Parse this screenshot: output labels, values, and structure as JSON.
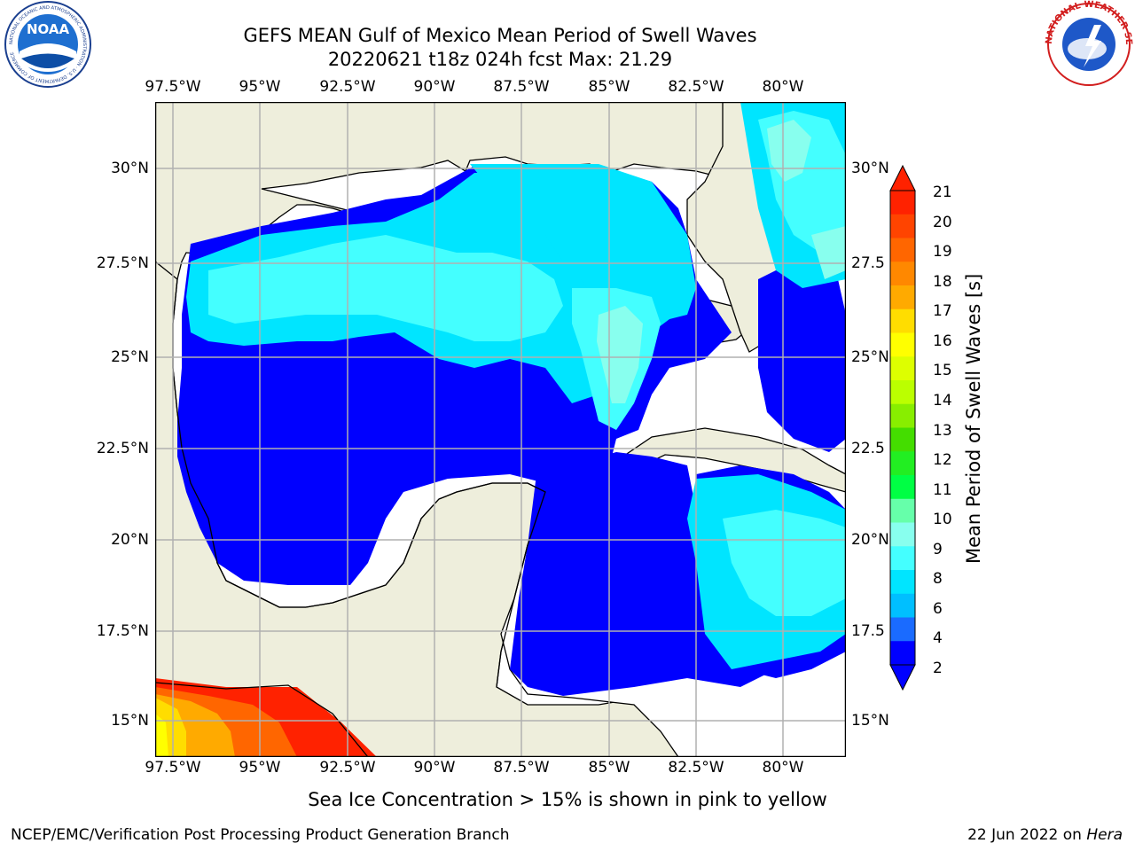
{
  "title_line1": "GEFS MEAN Gulf of Mexico Mean Period of Swell Waves",
  "title_line2": "20220621 t18z 024h fcst   Max: 21.29",
  "lon_ticks": [
    "97.5°W",
    "95°W",
    "92.5°W",
    "90°W",
    "87.5°W",
    "85°W",
    "82.5°W",
    "80°W"
  ],
  "lat_ticks": [
    "30°N",
    "27.5°N",
    "25°N",
    "22.5°N",
    "20°N",
    "17.5°N",
    "15°N"
  ],
  "lat_ticks_right": [
    "30°N",
    "27.5",
    "25°N",
    "22.5",
    "20°N",
    "17.5",
    "15°N"
  ],
  "colorbar": {
    "title": "Mean Period of Swell Waves [s]",
    "labels": [
      "21",
      "20",
      "19",
      "18",
      "17",
      "16",
      "15",
      "14",
      "13",
      "12",
      "11",
      "10",
      "9",
      "8",
      "6",
      "4",
      "2"
    ],
    "colors_top_to_bottom": [
      "#ff2200",
      "#ff4400",
      "#ff6600",
      "#ff8800",
      "#ffaa00",
      "#ffdd00",
      "#ffff00",
      "#ddff00",
      "#bbff00",
      "#88ee00",
      "#44dd00",
      "#22ee22",
      "#00ff44",
      "#66ffaa",
      "#88ffee",
      "#44ffff",
      "#00e5ff",
      "#00bfff",
      "#1a6bff",
      "#0000ff"
    ]
  },
  "subtitle": "Sea Ice Concentration > 15% is shown in pink to yellow",
  "footer_left": "NCEP/EMC/Verification Post Processing Product Generation Branch",
  "footer_date": "22 Jun 2022 on ",
  "footer_host": "Hera",
  "logos": {
    "noaa_text": "NOAA",
    "noaa_ring": "NATIONAL OCEANIC AND ATMOSPHERIC ADMINISTRATION · U.S. DEPARTMENT OF COMMERCE",
    "nws_ring": "NATIONAL WEATHER SERVICE"
  },
  "colors": {
    "land": "#eeeedc",
    "ocean_none": "#ffffff",
    "blue": "#0000ff",
    "cyan": "#00e5ff",
    "light_cyan": "#44ffff",
    "pale_cyan": "#88ffee",
    "grid": "#b0b0b0"
  }
}
